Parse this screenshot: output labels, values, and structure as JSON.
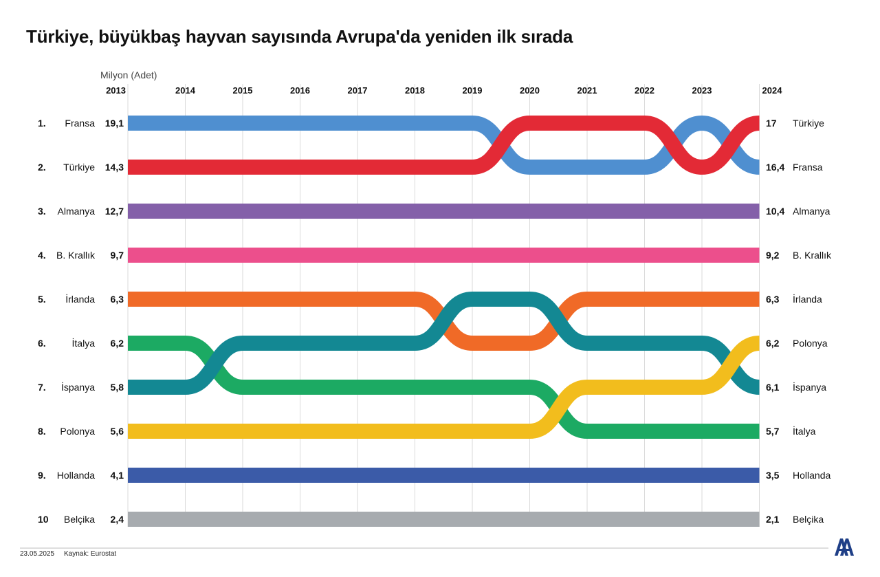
{
  "title": "Türkiye, büyükbaş hayvan sayısında Avrupa'da yeniden ilk sırada",
  "footer": {
    "date": "23.05.2025",
    "source": "Kaynak: Eurostat"
  },
  "logo": {
    "icon": "aa-logo-icon",
    "color": "#1f3f87"
  },
  "chart_data": {
    "type": "line",
    "chart_subtype": "rank bump chart",
    "unit_label": "Milyon (Adet)",
    "x": [
      "2013",
      "2014",
      "2015",
      "2016",
      "2017",
      "2018",
      "2019",
      "2020",
      "2021",
      "2022",
      "2023",
      "2024"
    ],
    "rank_labels": [
      "1.",
      "2.",
      "3.",
      "4.",
      "5.",
      "6.",
      "7.",
      "8.",
      "9.",
      "10"
    ],
    "start": {
      "year": "2013",
      "countries": [
        "Fransa",
        "Türkiye",
        "Almanya",
        "B. Krallık",
        "İrlanda",
        "İtalya",
        "İspanya",
        "Polonya",
        "Hollanda",
        "Belçika"
      ],
      "values": [
        "19,1",
        "14,3",
        "12,7",
        "9,7",
        "6,3",
        "6,2",
        "5,8",
        "5,6",
        "4,1",
        "2,4"
      ]
    },
    "end": {
      "year": "2024",
      "countries": [
        "Türkiye",
        "Fransa",
        "Almanya",
        "B. Krallık",
        "İrlanda",
        "Polonya",
        "İspanya",
        "İtalya",
        "Hollanda",
        "Belçika"
      ],
      "values": [
        "17",
        "16,4",
        "10,4",
        "9,2",
        "6,3",
        "6,2",
        "6,1",
        "5,7",
        "3,5",
        "2,1"
      ]
    },
    "series": [
      {
        "name": "Fransa",
        "color": "#4f8fd0",
        "ranks": [
          1,
          1,
          1,
          1,
          1,
          1,
          1,
          2,
          2,
          2,
          1,
          2
        ]
      },
      {
        "name": "Türkiye",
        "color": "#e32a36",
        "ranks": [
          2,
          2,
          2,
          2,
          2,
          2,
          2,
          1,
          1,
          1,
          2,
          1
        ]
      },
      {
        "name": "Almanya",
        "color": "#8460a9",
        "ranks": [
          3,
          3,
          3,
          3,
          3,
          3,
          3,
          3,
          3,
          3,
          3,
          3
        ]
      },
      {
        "name": "B. Krallık",
        "color": "#ec4f8c",
        "ranks": [
          4,
          4,
          4,
          4,
          4,
          4,
          4,
          4,
          4,
          4,
          4,
          4
        ]
      },
      {
        "name": "İrlanda",
        "color": "#f06a27",
        "ranks": [
          5,
          5,
          5,
          5,
          5,
          5,
          6,
          6,
          5,
          5,
          5,
          5
        ]
      },
      {
        "name": "İtalya",
        "color": "#1caa63",
        "ranks": [
          6,
          6,
          7,
          7,
          7,
          7,
          7,
          7,
          8,
          8,
          8,
          8
        ]
      },
      {
        "name": "İspanya",
        "color": "#138893",
        "ranks": [
          7,
          7,
          6,
          6,
          6,
          6,
          5,
          5,
          6,
          6,
          6,
          7
        ]
      },
      {
        "name": "Polonya",
        "color": "#f2bd1d",
        "ranks": [
          8,
          8,
          8,
          8,
          8,
          8,
          8,
          8,
          7,
          7,
          7,
          6
        ]
      },
      {
        "name": "Hollanda",
        "color": "#3b5ba8",
        "ranks": [
          9,
          9,
          9,
          9,
          9,
          9,
          9,
          9,
          9,
          9,
          9,
          9
        ]
      },
      {
        "name": "Belçika",
        "color": "#a7abaf",
        "ranks": [
          10,
          10,
          10,
          10,
          10,
          10,
          10,
          10,
          10,
          10,
          10,
          10
        ]
      }
    ],
    "grid": true,
    "legend": "none"
  }
}
